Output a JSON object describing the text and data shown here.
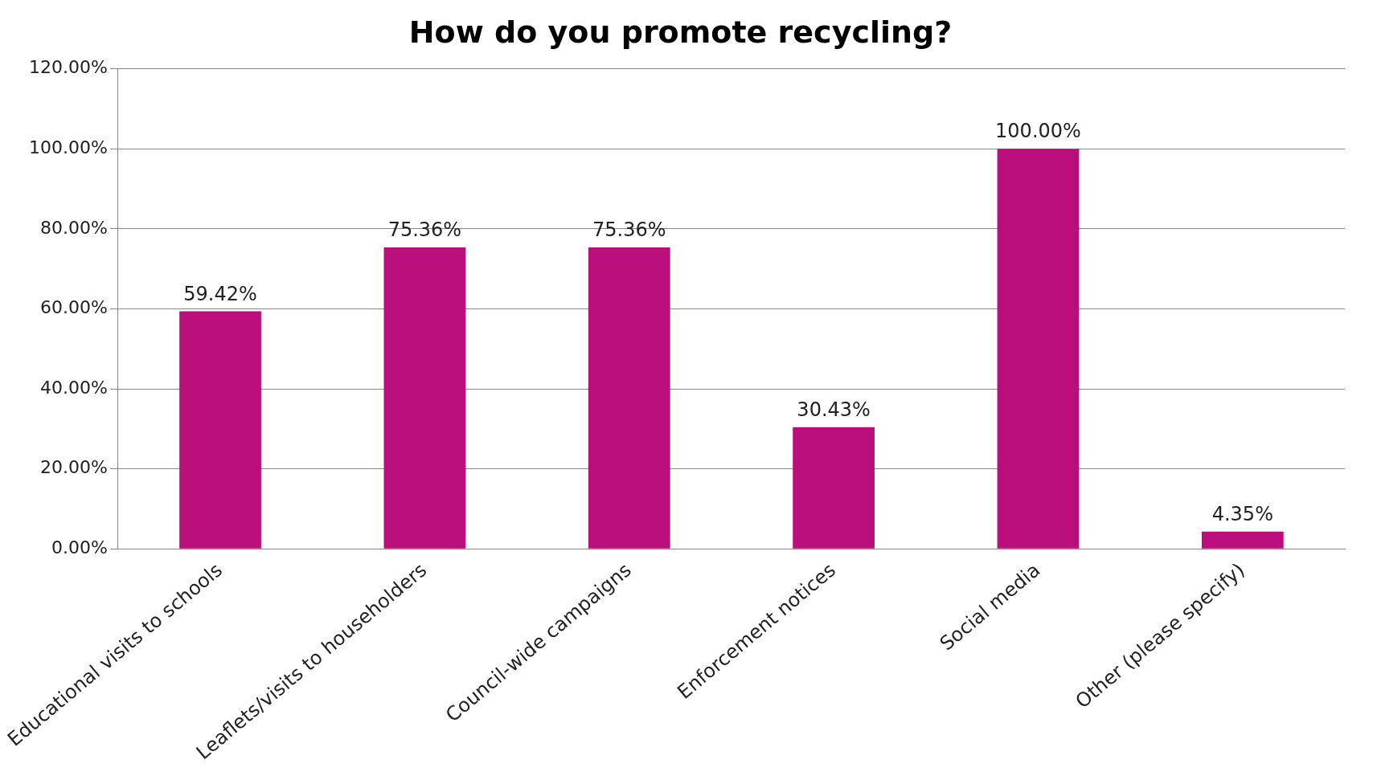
{
  "chart_data": {
    "type": "bar",
    "title": "How do you promote recycling?",
    "categories": [
      "Educational visits to schools",
      "Leaflets/visits to householders",
      "Council-wide campaigns",
      "Enforcement notices",
      "Social media",
      "Other (please specify)"
    ],
    "values": [
      59.42,
      75.36,
      75.36,
      30.43,
      100,
      4.35
    ],
    "value_labels": [
      "59.42%",
      "75.36%",
      "75.36%",
      "30.43%",
      "100.00%",
      "4.35%"
    ],
    "color": "#b90e7b",
    "ylim": [
      0,
      120
    ],
    "yticks": [
      {
        "value": 0,
        "label": "0.00%"
      },
      {
        "value": 20,
        "label": "20.00%"
      },
      {
        "value": 40,
        "label": "40.00%"
      },
      {
        "value": 60,
        "label": "60.00%"
      },
      {
        "value": 80,
        "label": "80.00%"
      },
      {
        "value": 100,
        "label": "100.00%"
      },
      {
        "value": 120,
        "label": "120.00%"
      }
    ],
    "grid": "y",
    "legend": false
  }
}
